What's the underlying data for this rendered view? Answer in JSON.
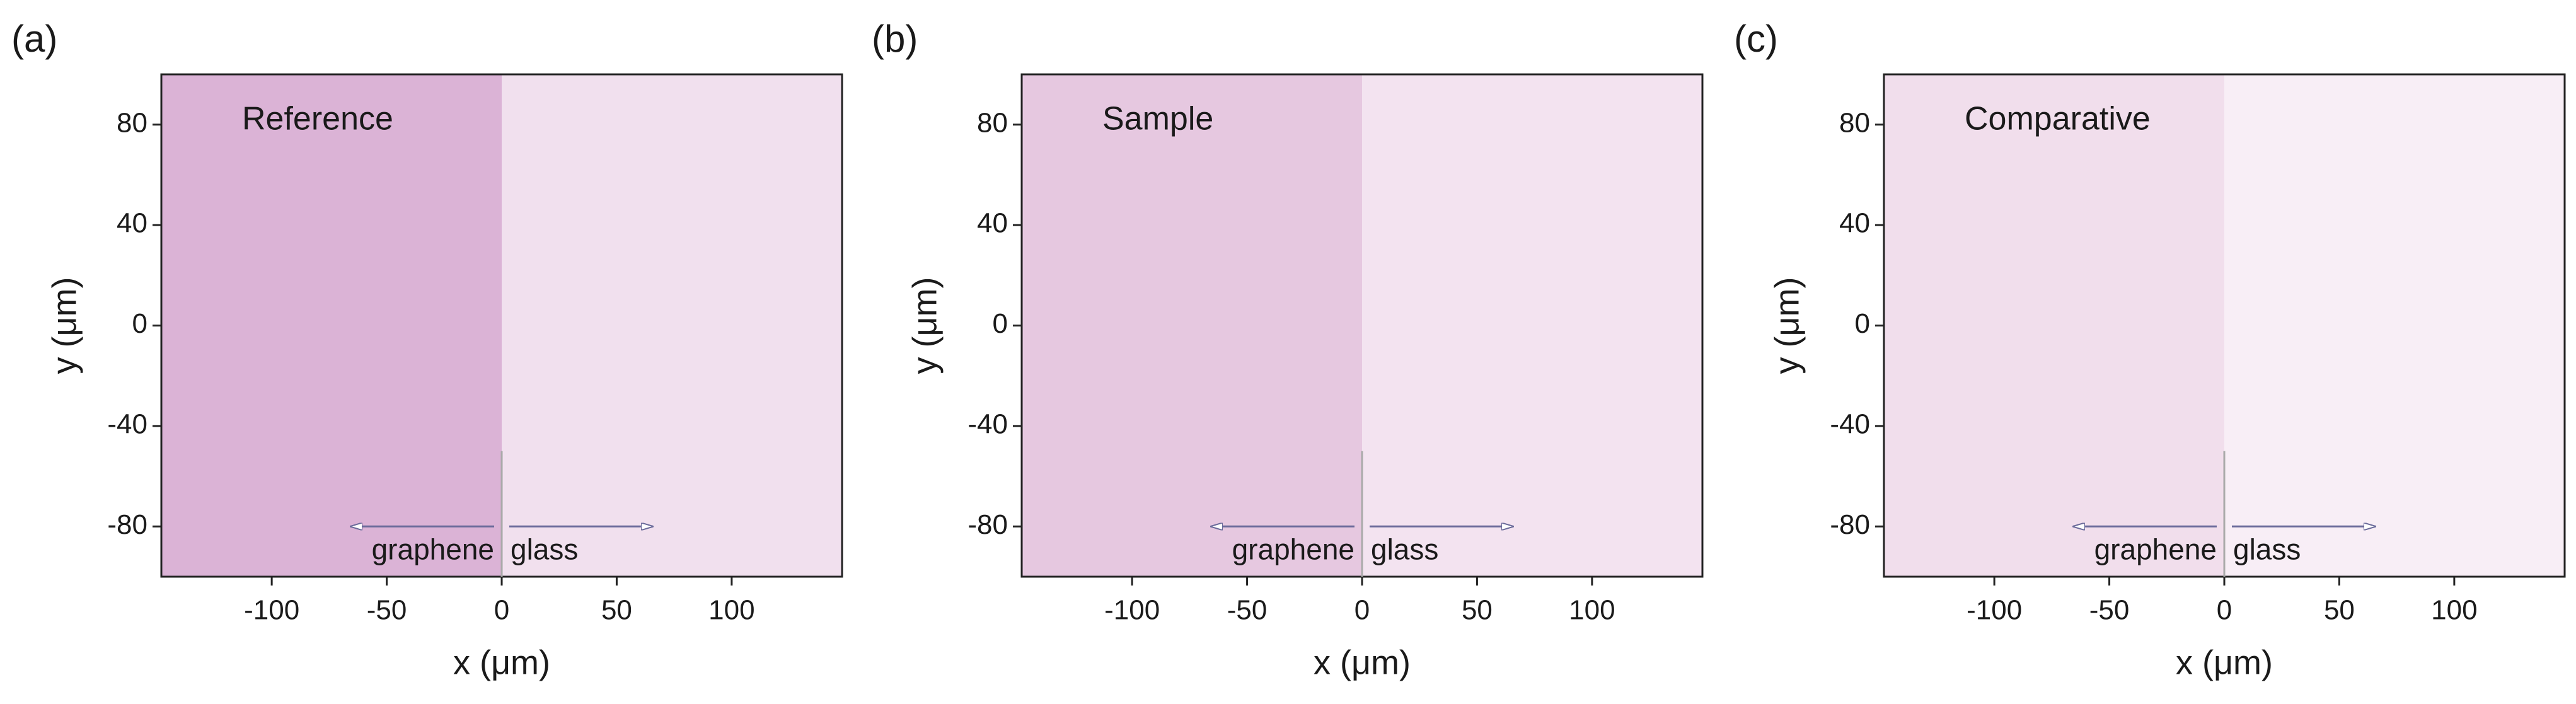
{
  "chart_data": [
    {
      "type": "image",
      "panel_label": "(a)",
      "title": "Reference",
      "xlabel": "x (μm)",
      "ylabel": "y (μm)",
      "xlim": [
        -148,
        148
      ],
      "ylim": [
        -100,
        100
      ],
      "xticks": [
        -100,
        -50,
        0,
        50,
        100
      ],
      "yticks": [
        -80,
        -40,
        0,
        40,
        80
      ],
      "annotations": [
        "graphene",
        "glass"
      ],
      "image_colors": [
        "#dbb3d6",
        "#f1e0ee"
      ]
    },
    {
      "type": "image",
      "panel_label": "(b)",
      "title": "Sample",
      "xlabel": "x (μm)",
      "ylabel": "y (μm)",
      "xlim": [
        -148,
        148
      ],
      "ylim": [
        -100,
        100
      ],
      "xticks": [
        -100,
        -50,
        0,
        50,
        100
      ],
      "yticks": [
        -80,
        -40,
        0,
        40,
        80
      ],
      "annotations": [
        "graphene",
        "glass"
      ],
      "image_colors": [
        "#e6c8e0",
        "#f3e3f0"
      ]
    },
    {
      "type": "image",
      "panel_label": "(c)",
      "title": "Comparative",
      "xlabel": "x (μm)",
      "ylabel": "y (μm)",
      "xlim": [
        -148,
        148
      ],
      "ylim": [
        -100,
        100
      ],
      "xticks": [
        -100,
        -50,
        0,
        50,
        100
      ],
      "yticks": [
        -80,
        -40,
        0,
        40,
        80
      ],
      "annotations": [
        "graphene",
        "glass"
      ],
      "image_colors": [
        "#f1deec",
        "#f8eef6"
      ]
    }
  ]
}
